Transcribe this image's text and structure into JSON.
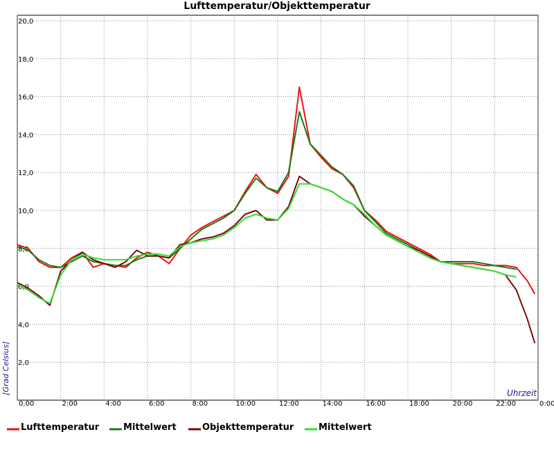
{
  "chart_data": {
    "type": "line",
    "title": "Lufttemperatur/Objekttemperatur",
    "ylabel": "[Grad Celsius]",
    "xlabel": "Uhrzeit",
    "x": [
      0,
      0.5,
      1,
      1.5,
      2,
      2.5,
      3,
      3.5,
      4,
      4.5,
      5,
      5.5,
      6,
      6.5,
      7,
      7.5,
      8,
      8.5,
      9,
      9.5,
      10,
      10.5,
      11,
      11.5,
      12,
      12.5,
      13,
      13.5,
      14,
      14.5,
      15,
      15.5,
      16,
      16.5,
      17,
      17.5,
      18,
      18.5,
      19,
      19.5,
      20,
      20.5,
      21,
      21.5,
      22,
      22.5,
      23,
      23.5,
      23.85
    ],
    "series": [
      {
        "name": "Lufttemperatur",
        "color": "#ee1111",
        "values": [
          8.2,
          8.0,
          7.3,
          7.0,
          7.0,
          7.5,
          7.8,
          7.0,
          7.2,
          7.1,
          7.0,
          7.5,
          7.8,
          7.6,
          7.2,
          8.0,
          8.7,
          9.1,
          9.4,
          9.7,
          10.0,
          11.0,
          11.9,
          11.2,
          10.9,
          11.8,
          16.5,
          13.5,
          12.8,
          12.2,
          11.9,
          11.2,
          10.0,
          9.5,
          8.9,
          8.6,
          8.3,
          8.0,
          7.7,
          7.3,
          7.2,
          7.2,
          7.2,
          7.1,
          7.1,
          7.1,
          7.0,
          6.3,
          5.6
        ]
      },
      {
        "name": "Mittelwert",
        "color": "#1a7a1a",
        "values": [
          8.1,
          7.9,
          7.4,
          7.1,
          7.0,
          7.3,
          7.6,
          7.3,
          7.2,
          7.1,
          7.1,
          7.4,
          7.6,
          7.6,
          7.5,
          8.0,
          8.5,
          9.0,
          9.3,
          9.6,
          10.0,
          10.9,
          11.7,
          11.2,
          11.0,
          12.0,
          15.2,
          13.5,
          12.9,
          12.3,
          11.9,
          11.3,
          10.0,
          9.4,
          8.8,
          8.5,
          8.2,
          7.9,
          7.6,
          7.3,
          7.3,
          7.3,
          7.3,
          7.2,
          7.1,
          7.0,
          6.9,
          null,
          null
        ]
      },
      {
        "name": "Objekttemperatur",
        "color": "#7a0a0a",
        "values": [
          6.2,
          5.9,
          5.5,
          5.0,
          6.8,
          7.4,
          7.8,
          7.4,
          7.2,
          7.0,
          7.3,
          7.9,
          7.6,
          7.6,
          7.5,
          8.2,
          8.3,
          8.5,
          8.6,
          8.8,
          9.2,
          9.8,
          10.0,
          9.5,
          9.5,
          10.2,
          11.8,
          11.4,
          11.2,
          11.0,
          10.6,
          10.3,
          9.7,
          9.2,
          8.7,
          8.4,
          8.1,
          7.9,
          7.6,
          7.3,
          7.2,
          7.1,
          7.0,
          6.9,
          6.8,
          6.6,
          5.8,
          4.3,
          3.0
        ]
      },
      {
        "name": "Mittelwert",
        "color": "#33dd33",
        "values": [
          6.1,
          5.8,
          5.4,
          5.1,
          6.6,
          7.4,
          7.7,
          7.5,
          7.4,
          7.4,
          7.4,
          7.6,
          7.7,
          7.7,
          7.6,
          8.1,
          8.3,
          8.4,
          8.5,
          8.7,
          9.1,
          9.6,
          9.8,
          9.6,
          9.5,
          10.1,
          11.4,
          11.4,
          11.2,
          11.0,
          10.6,
          10.3,
          9.8,
          9.2,
          8.7,
          8.4,
          8.1,
          7.8,
          7.5,
          7.3,
          7.2,
          7.1,
          7.0,
          6.9,
          6.8,
          6.6,
          6.5,
          null,
          null
        ]
      }
    ],
    "xlim": [
      0,
      24
    ],
    "xticks": [
      {
        "value": 0,
        "label": "0,00"
      },
      {
        "value": 2,
        "label": "2:00"
      },
      {
        "value": 4,
        "label": "4:00"
      },
      {
        "value": 6,
        "label": "6:00"
      },
      {
        "value": 8,
        "label": "8:00"
      },
      {
        "value": 10,
        "label": "10:00"
      },
      {
        "value": 12,
        "label": "12:00"
      },
      {
        "value": 14,
        "label": "14:00"
      },
      {
        "value": 16,
        "label": "16:00"
      },
      {
        "value": 18,
        "label": "18:00"
      },
      {
        "value": 20,
        "label": "20:00"
      },
      {
        "value": 22,
        "label": "22:00"
      },
      {
        "value": 24,
        "label": "0:00"
      }
    ],
    "ylim": [
      0,
      20
    ],
    "yticks": [
      {
        "value": 2,
        "label": "2,0"
      },
      {
        "value": 4,
        "label": "4,0"
      },
      {
        "value": 6,
        "label": "6,0"
      },
      {
        "value": 8,
        "label": "8,0"
      },
      {
        "value": 10,
        "label": "10,0"
      },
      {
        "value": 12,
        "label": "12,0"
      },
      {
        "value": 14,
        "label": "14,0"
      },
      {
        "value": 16,
        "label": "16,0"
      },
      {
        "value": 18,
        "label": "18,0"
      },
      {
        "value": 20,
        "label": "20,0"
      }
    ],
    "grid": true
  }
}
